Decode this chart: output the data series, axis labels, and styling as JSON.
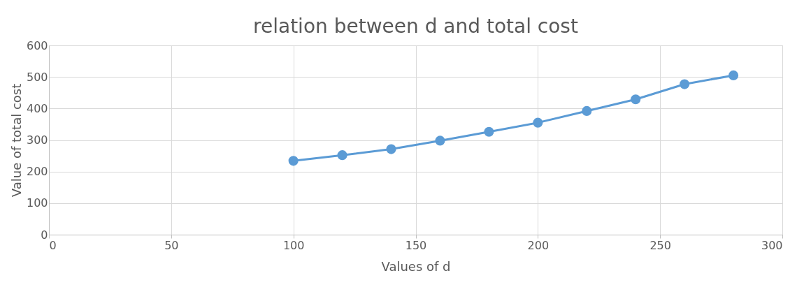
{
  "chart_data": {
    "type": "line",
    "title": "relation between d and total cost",
    "xlabel": "Values of d",
    "ylabel": "Value of total cost",
    "x": [
      100,
      120,
      140,
      160,
      180,
      200,
      220,
      240,
      260,
      280
    ],
    "series": [
      {
        "color": "#5b9bd5",
        "values": [
          234,
          252,
          271,
          298,
          326,
          355,
          392,
          429,
          477,
          505
        ]
      }
    ],
    "xlim": [
      0,
      300
    ],
    "xticks": [
      0,
      50,
      100,
      150,
      200,
      250,
      300
    ],
    "ylim": [
      0,
      600
    ],
    "yticks": [
      0,
      100,
      200,
      300,
      400,
      500,
      600
    ],
    "grid": true,
    "marker": "circle",
    "line_style": "solid"
  }
}
